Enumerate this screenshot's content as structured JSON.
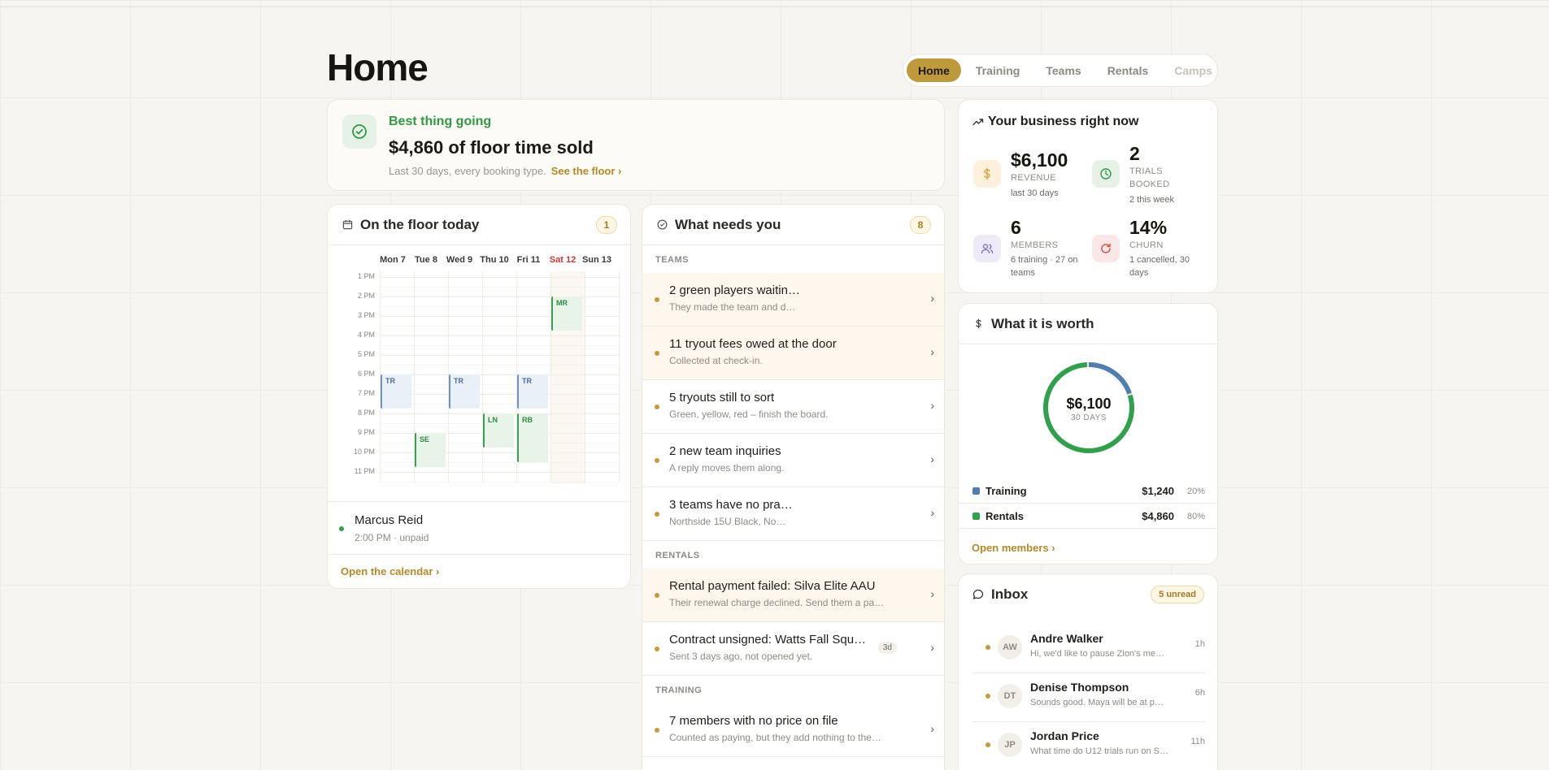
{
  "page": {
    "title": "Home"
  },
  "nav": {
    "tabs": [
      {
        "label": "Home",
        "active": true
      },
      {
        "label": "Training"
      },
      {
        "label": "Teams"
      },
      {
        "label": "Rentals"
      },
      {
        "label": "Camps"
      }
    ]
  },
  "hero": {
    "kicker": "Best thing going",
    "headline": "$4,860 of floor time sold",
    "sub": "Last 30 days, every booking type.",
    "link": "See the floor ›"
  },
  "calendar": {
    "title": "On the floor today",
    "badge": "1",
    "days": [
      "Mon 7",
      "Tue 8",
      "Wed 9",
      "Thu 10",
      "Fri 11",
      "Sat 12",
      "Sun 13"
    ],
    "times": [
      "1 PM",
      "2 PM",
      "3 PM",
      "4 PM",
      "5 PM",
      "6 PM",
      "7 PM",
      "8 PM",
      "9 PM",
      "10 PM",
      "11 PM"
    ],
    "events": [
      {
        "label": "MR",
        "day": 5,
        "start": 14,
        "end": 15.75,
        "kind": "gr"
      },
      {
        "label": "TR",
        "day": 0,
        "start": 18,
        "end": 19.75,
        "kind": "tr"
      },
      {
        "label": "TR",
        "day": 2,
        "start": 18,
        "end": 19.75,
        "kind": "tr"
      },
      {
        "label": "TR",
        "day": 4,
        "start": 18,
        "end": 19.75,
        "kind": "tr"
      },
      {
        "label": "SE",
        "day": 1,
        "start": 21,
        "end": 22.75,
        "kind": "gr"
      },
      {
        "label": "LN",
        "day": 3,
        "start": 20,
        "end": 21.75,
        "kind": "gr"
      },
      {
        "label": "RB",
        "day": 4,
        "start": 20,
        "end": 22.5,
        "kind": "gr"
      }
    ],
    "item": {
      "name": "Marcus Reid",
      "meta": "2:00 PM · unpaid"
    },
    "link": "Open the calendar ›"
  },
  "needs": {
    "title": "What needs you",
    "badge": "8",
    "teams_label": "TEAMS",
    "rentals_label": "RENTALS",
    "training_label": "TRAINING",
    "teams": [
      {
        "title": "2 green players waitin…",
        "sub": "They made the team and d…"
      },
      {
        "title": "11 tryout fees owed at the door",
        "sub": "Collected at check-in."
      },
      {
        "title": "5 tryouts still to sort",
        "sub": "Green, yellow, red – finish the board."
      },
      {
        "title": "2 new team inquiries",
        "sub": "A reply moves them along."
      },
      {
        "title": "3 teams have no pra…",
        "sub": "Northside 15U Black, No…"
      }
    ],
    "rentals": [
      {
        "title": "Rental payment failed: Silva Elite AAU",
        "sub": "Their renewal charge declined. Send them a pa…"
      },
      {
        "title": "Contract unsigned: Watts Fall Squ…",
        "sub": "Sent 3 days ago, not opened yet.",
        "age": "3d"
      }
    ],
    "training": [
      {
        "title": "7 members with no price on file",
        "sub": "Counted as paying, but they add nothing to the…"
      }
    ]
  },
  "business": {
    "title": "Your business right now",
    "stats": [
      {
        "value": "$6,100",
        "label": "REVENUE",
        "sub": "last 30 days",
        "icon": "dollar-icon"
      },
      {
        "value": "2",
        "label": "TRIALS BOOKED",
        "sub": "2 this week",
        "icon": "clock-icon"
      },
      {
        "value": "6",
        "label": "MEMBERS",
        "sub": "6 training · 27 on teams",
        "icon": "users-icon"
      },
      {
        "value": "14%",
        "label": "CHURN",
        "sub": "1 cancelled, 30 days",
        "icon": "refresh-icon"
      }
    ]
  },
  "worth": {
    "title": "What it is worth",
    "total": "$6,100",
    "period": "30 DAYS",
    "link": "Open members ›",
    "chart_data": {
      "type": "pie",
      "categories": [
        "Training",
        "Rentals"
      ],
      "values": [
        1240,
        4860
      ],
      "labels": [
        "$1,240",
        "$4,860"
      ],
      "percents": [
        "20%",
        "80%"
      ],
      "colors": [
        "#4f7fb0",
        "#2ea14a"
      ]
    }
  },
  "inbox": {
    "title": "Inbox",
    "badge": "5 unread",
    "messages": [
      {
        "initials": "AW",
        "from": "Andre Walker",
        "preview": "Hi, we'd like to pause Zion's me…",
        "time": "1h"
      },
      {
        "initials": "DT",
        "from": "Denise Thompson",
        "preview": "Sounds good. Maya will be at p…",
        "time": "6h"
      },
      {
        "initials": "JP",
        "from": "Jordan Price",
        "preview": "What time do U12 trials run on S…",
        "time": "11h"
      }
    ]
  },
  "colors": {
    "accent": "#bf9a3a",
    "green": "#2ea14a",
    "blue": "#4f7fb0"
  }
}
